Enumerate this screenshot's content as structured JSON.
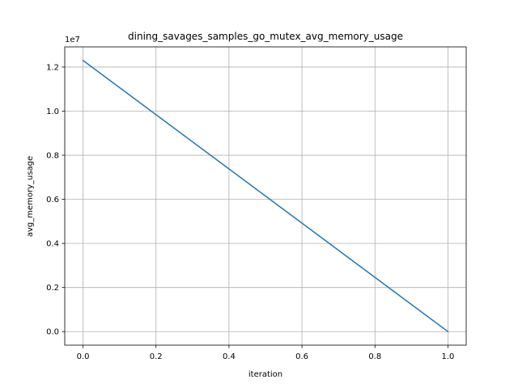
{
  "chart_data": {
    "type": "line",
    "title": "dining_savages_samples_go_mutex_avg_memory_usage",
    "xlabel": "iteration",
    "ylabel": "avg_memory_usage",
    "offset_label": "1e7",
    "xlim": [
      -0.05,
      1.05
    ],
    "ylim": [
      -0.0615,
      1.2915
    ],
    "x_ticks": [
      0.0,
      0.2,
      0.4,
      0.6,
      0.8,
      1.0
    ],
    "x_tick_labels": [
      "0.0",
      "0.2",
      "0.4",
      "0.6",
      "0.8",
      "1.0"
    ],
    "y_ticks": [
      0.0,
      0.2,
      0.4,
      0.6,
      0.8,
      1.0,
      1.2
    ],
    "y_tick_labels": [
      "0.0",
      "0.2",
      "0.4",
      "0.6",
      "0.8",
      "1.0",
      "1.2"
    ],
    "grid": true,
    "series": [
      {
        "x": [
          0.0,
          1.0
        ],
        "y": [
          1.23,
          0.0
        ],
        "color": "#1f77b4"
      }
    ]
  }
}
